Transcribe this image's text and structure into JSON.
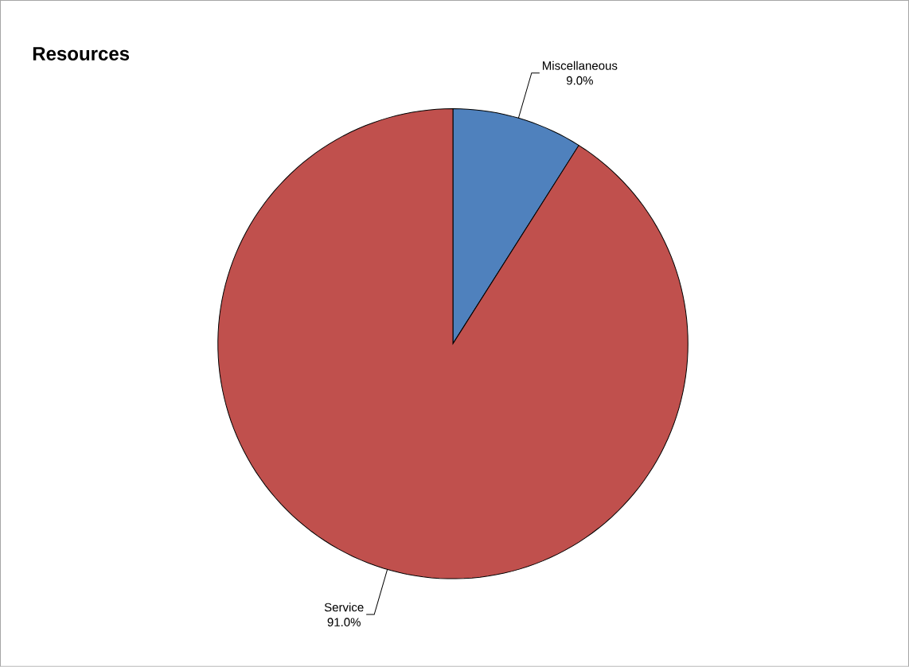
{
  "chart_data": {
    "type": "pie",
    "title": "Resources",
    "categories": [
      "Miscellaneous",
      "Service"
    ],
    "values": [
      9.0,
      91.0
    ],
    "colors": [
      "#4f81bd",
      "#c0504d"
    ],
    "value_labels": [
      "9.0%",
      "91.0%"
    ]
  }
}
